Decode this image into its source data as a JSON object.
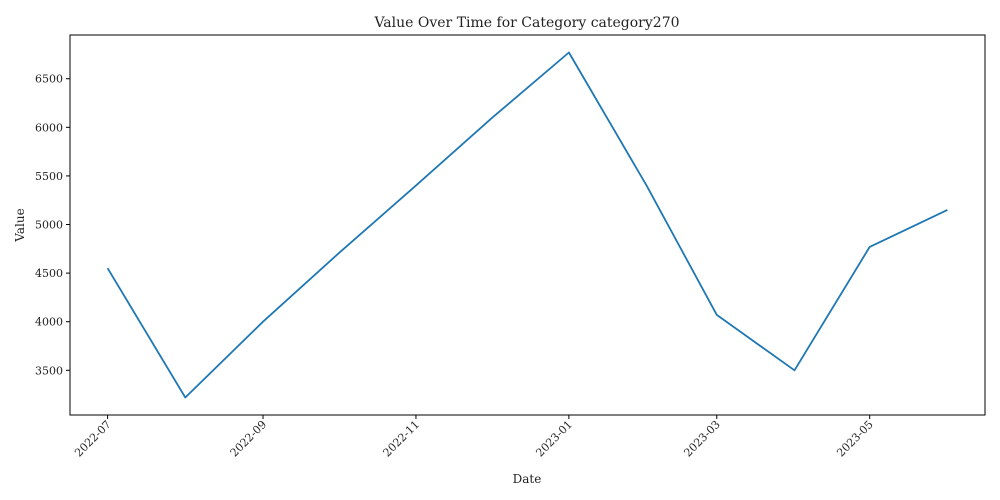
{
  "chart_data": {
    "type": "line",
    "title": "Value Over Time for Category category270",
    "xlabel": "Date",
    "ylabel": "Value",
    "x": [
      "2022-07-01",
      "2022-08-01",
      "2022-09-01",
      "2022-10-01",
      "2022-11-01",
      "2022-12-01",
      "2023-01-01",
      "2023-02-01",
      "2023-03-01",
      "2023-04-01",
      "2023-05-01",
      "2023-06-01"
    ],
    "series": [
      {
        "values": [
          4550,
          3220,
          4000,
          4700,
          5400,
          6090,
          6770,
          5400,
          4070,
          3500,
          4770,
          5150
        ]
      }
    ],
    "x_ticks": [
      "2022-07",
      "2022-09",
      "2022-11",
      "2023-01",
      "2023-03",
      "2023-05"
    ],
    "y_ticks": [
      3500,
      4000,
      4500,
      5000,
      5500,
      6000,
      6500
    ],
    "ylim": [
      3040,
      6950
    ],
    "xlim": [
      "2022-06-16",
      "2023-06-16"
    ],
    "grid": false,
    "line_color": "#1f77b4"
  }
}
